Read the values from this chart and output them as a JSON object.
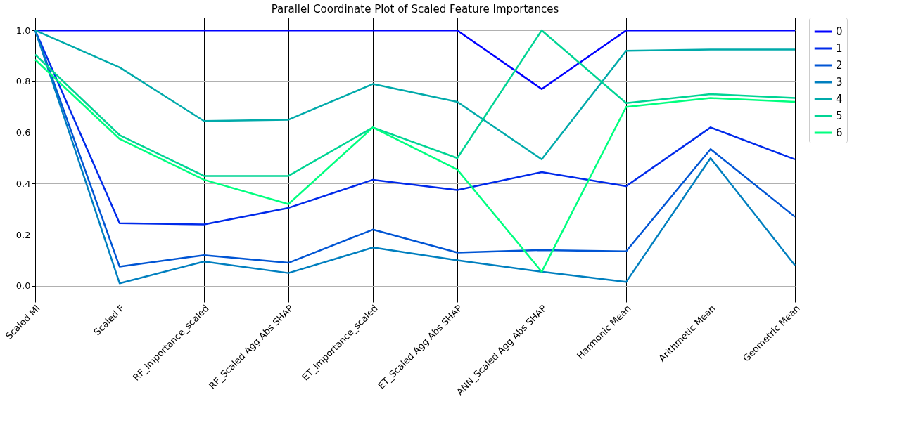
{
  "chart_data": {
    "type": "line",
    "title": "Parallel Coordinate Plot of Scaled Feature Importances",
    "categories": [
      "Scaled MI",
      "Scaled F",
      "RF_Importance_scaled",
      "RF_Scaled Agg Abs SHAP",
      "ET_Importance_scaled",
      "ET_Scaled Agg Abs SHAP",
      "ANN_Scaled Agg Abs SHAP",
      "Harmonic Mean",
      "Arithmetic Mean",
      "Geometric Mean"
    ],
    "series": [
      {
        "name": "0",
        "color": "#0000ff",
        "values": [
          1,
          1,
          1,
          1,
          1,
          1,
          0.77,
          1,
          1,
          1
        ]
      },
      {
        "name": "1",
        "color": "#002aea",
        "values": [
          1,
          0.245,
          0.24,
          0.305,
          0.415,
          0.375,
          0.445,
          0.39,
          0.62,
          0.495
        ]
      },
      {
        "name": "2",
        "color": "#0055d4",
        "values": [
          1,
          0.075,
          0.12,
          0.09,
          0.22,
          0.13,
          0.14,
          0.135,
          0.535,
          0.27
        ]
      },
      {
        "name": "3",
        "color": "#007fbf",
        "values": [
          1,
          0.01,
          0.095,
          0.05,
          0.15,
          0.1,
          0.055,
          0.015,
          0.5,
          0.08
        ]
      },
      {
        "name": "4",
        "color": "#00aaaa",
        "values": [
          1,
          0.855,
          0.645,
          0.65,
          0.79,
          0.72,
          0.495,
          0.92,
          0.925,
          0.925
        ]
      },
      {
        "name": "5",
        "color": "#00d494",
        "values": [
          0.905,
          0.59,
          0.43,
          0.43,
          0.62,
          0.5,
          1.0,
          0.715,
          0.75,
          0.735
        ]
      },
      {
        "name": "6",
        "color": "#00ff7f",
        "values": [
          0.885,
          0.575,
          0.415,
          0.32,
          0.62,
          0.455,
          0.055,
          0.7,
          0.735,
          0.72
        ]
      }
    ],
    "ylim": [
      -0.05,
      1.05
    ],
    "yticks": [
      {
        "value": 0,
        "label": "0.0"
      },
      {
        "value": 0.2,
        "label": "0.2"
      },
      {
        "value": 0.4,
        "label": "0.4"
      },
      {
        "value": 0.6,
        "label": "0.6"
      },
      {
        "value": 0.8,
        "label": "0.8"
      },
      {
        "value": 1,
        "label": "1.0"
      }
    ],
    "grid": true,
    "legend": "top right",
    "marker": "none",
    "line_style": "solid"
  }
}
